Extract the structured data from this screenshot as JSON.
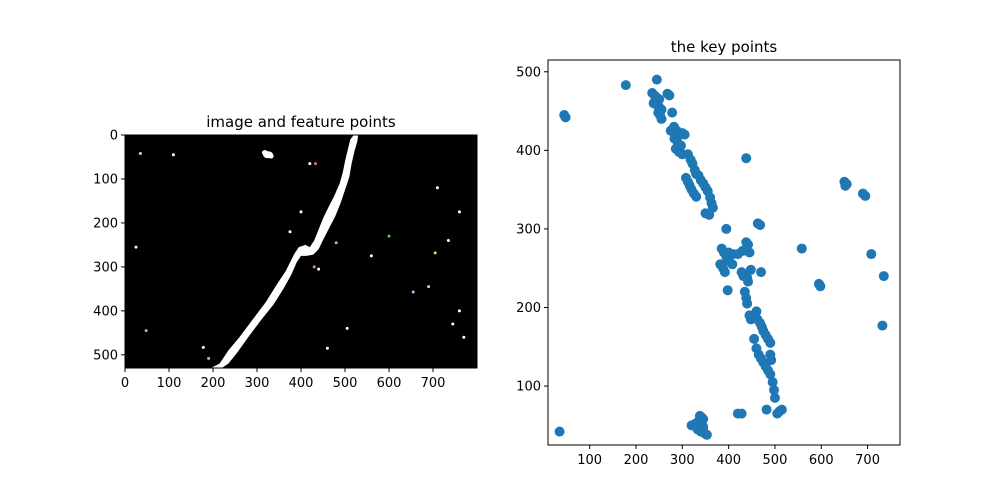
{
  "chart_data": [
    {
      "type": "image",
      "title": "image and feature points",
      "xlim": [
        0,
        800
      ],
      "ylim": [
        530,
        0
      ],
      "xticks": [
        0,
        100,
        200,
        300,
        400,
        500,
        600,
        700
      ],
      "yticks": [
        0,
        100,
        200,
        300,
        400,
        500
      ],
      "background_color": "#000000",
      "foreground_color": "#ffffff"
    },
    {
      "type": "scatter",
      "title": "the key points",
      "xlim": [
        10,
        770
      ],
      "ylim": [
        25,
        515
      ],
      "xticks": [
        100,
        200,
        300,
        400,
        500,
        600,
        700
      ],
      "yticks": [
        100,
        200,
        300,
        400,
        500
      ],
      "marker_color": "#1f77b4",
      "points": [
        [
          35,
          42
        ],
        [
          45,
          445
        ],
        [
          48,
          442
        ],
        [
          178,
          483
        ],
        [
          245,
          490
        ],
        [
          235,
          473
        ],
        [
          240,
          470
        ],
        [
          245,
          467
        ],
        [
          250,
          465
        ],
        [
          238,
          460
        ],
        [
          245,
          458
        ],
        [
          250,
          455
        ],
        [
          255,
          452
        ],
        [
          248,
          448
        ],
        [
          252,
          445
        ],
        [
          255,
          440
        ],
        [
          268,
          472
        ],
        [
          272,
          470
        ],
        [
          278,
          448
        ],
        [
          275,
          425
        ],
        [
          282,
          430
        ],
        [
          288,
          425
        ],
        [
          295,
          420
        ],
        [
          300,
          422
        ],
        [
          305,
          420
        ],
        [
          283,
          415
        ],
        [
          290,
          410
        ],
        [
          297,
          406
        ],
        [
          286,
          402
        ],
        [
          293,
          398
        ],
        [
          300,
          395
        ],
        [
          312,
          395
        ],
        [
          318,
          388
        ],
        [
          322,
          383
        ],
        [
          327,
          375
        ],
        [
          330,
          370
        ],
        [
          335,
          368
        ],
        [
          340,
          362
        ],
        [
          345,
          358
        ],
        [
          350,
          353
        ],
        [
          355,
          348
        ],
        [
          360,
          340
        ],
        [
          363,
          333
        ],
        [
          366,
          327
        ],
        [
          308,
          365
        ],
        [
          312,
          360
        ],
        [
          316,
          355
        ],
        [
          320,
          350
        ],
        [
          325,
          345
        ],
        [
          330,
          341
        ],
        [
          350,
          320
        ],
        [
          358,
          318
        ],
        [
          438,
          390
        ],
        [
          395,
          300
        ],
        [
          463,
          307
        ],
        [
          468,
          305
        ],
        [
          385,
          275
        ],
        [
          390,
          270
        ],
        [
          395,
          265
        ],
        [
          400,
          270
        ],
        [
          410,
          268
        ],
        [
          420,
          268
        ],
        [
          430,
          272
        ],
        [
          438,
          283
        ],
        [
          442,
          280
        ],
        [
          438,
          275
        ],
        [
          445,
          270
        ],
        [
          400,
          260
        ],
        [
          408,
          255
        ],
        [
          382,
          255
        ],
        [
          388,
          250
        ],
        [
          392,
          245
        ],
        [
          428,
          245
        ],
        [
          432,
          240
        ],
        [
          440,
          238
        ],
        [
          442,
          233
        ],
        [
          448,
          248
        ],
        [
          470,
          245
        ],
        [
          398,
          222
        ],
        [
          435,
          220
        ],
        [
          438,
          212
        ],
        [
          440,
          205
        ],
        [
          445,
          190
        ],
        [
          448,
          185
        ],
        [
          460,
          195
        ],
        [
          462,
          185
        ],
        [
          468,
          180
        ],
        [
          472,
          175
        ],
        [
          475,
          170
        ],
        [
          480,
          165
        ],
        [
          485,
          160
        ],
        [
          490,
          155
        ],
        [
          455,
          160
        ],
        [
          460,
          148
        ],
        [
          465,
          140
        ],
        [
          470,
          135
        ],
        [
          475,
          130
        ],
        [
          480,
          125
        ],
        [
          485,
          120
        ],
        [
          490,
          115
        ],
        [
          490,
          140
        ],
        [
          492,
          133
        ],
        [
          495,
          105
        ],
        [
          498,
          95
        ],
        [
          500,
          85
        ],
        [
          482,
          70
        ],
        [
          505,
          65
        ],
        [
          510,
          68
        ],
        [
          515,
          70
        ],
        [
          420,
          65
        ],
        [
          428,
          65
        ],
        [
          320,
          50
        ],
        [
          328,
          52
        ],
        [
          335,
          55
        ],
        [
          340,
          50
        ],
        [
          345,
          48
        ],
        [
          333,
          45
        ],
        [
          340,
          42
        ],
        [
          348,
          40
        ],
        [
          353,
          38
        ],
        [
          338,
          62
        ],
        [
          342,
          60
        ],
        [
          345,
          58
        ],
        [
          558,
          275
        ],
        [
          595,
          230
        ],
        [
          598,
          227
        ],
        [
          650,
          360
        ],
        [
          655,
          357
        ],
        [
          652,
          355
        ],
        [
          690,
          345
        ],
        [
          695,
          342
        ],
        [
          708,
          268
        ],
        [
          735,
          240
        ],
        [
          732,
          177
        ]
      ]
    }
  ]
}
